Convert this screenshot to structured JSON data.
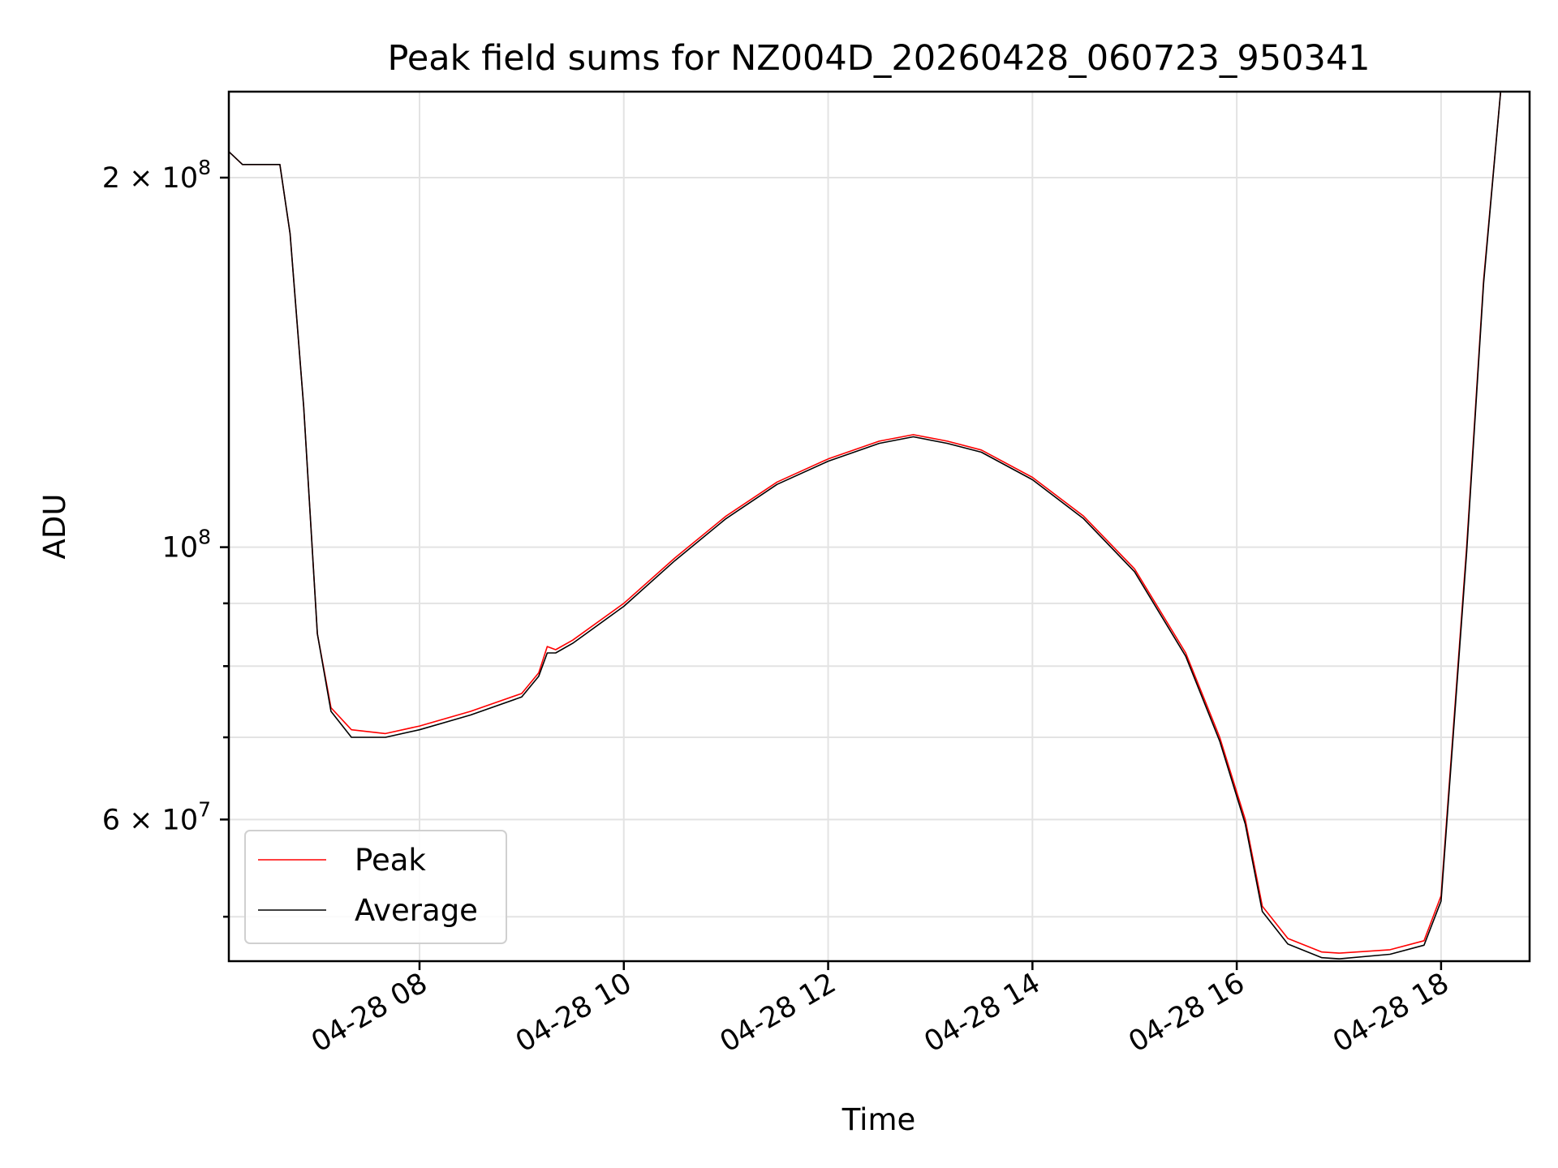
{
  "chart_data": {
    "type": "line",
    "title": "Peak field sums for NZ004D_20260428_060723_950341",
    "xlabel": "Time",
    "ylabel": "ADU",
    "y_scale": "log",
    "x_axis_type": "time",
    "xlim": [
      "2026-04-28 06:08",
      "2026-04-28 18:52"
    ],
    "ylim": [
      46000000,
      235000000
    ],
    "grid": true,
    "legend_position": "lower-left",
    "x_ticks": [
      {
        "t": "2026-04-28 08:00",
        "label": "04-28 08"
      },
      {
        "t": "2026-04-28 10:00",
        "label": "04-28 10"
      },
      {
        "t": "2026-04-28 12:00",
        "label": "04-28 12"
      },
      {
        "t": "2026-04-28 14:00",
        "label": "04-28 14"
      },
      {
        "t": "2026-04-28 16:00",
        "label": "04-28 16"
      },
      {
        "t": "2026-04-28 18:00",
        "label": "04-28 18"
      }
    ],
    "y_major_ticks": [
      {
        "value": 60000000,
        "mantissa": "6 × 10",
        "exp": "7"
      },
      {
        "value": 100000000,
        "mantissa": "10",
        "exp": "8"
      },
      {
        "value": 200000000,
        "mantissa": "2 × 10",
        "exp": "8"
      }
    ],
    "y_minor_ticks": [
      50000000,
      70000000,
      80000000,
      90000000
    ],
    "series": [
      {
        "name": "Peak",
        "color": "#ff0000",
        "points": [
          [
            "2026-04-28 06:08",
            210000000
          ],
          [
            "2026-04-28 06:16",
            205000000
          ],
          [
            "2026-04-28 06:30",
            205000000
          ],
          [
            "2026-04-28 06:38",
            205000000
          ],
          [
            "2026-04-28 06:44",
            180000000
          ],
          [
            "2026-04-28 06:52",
            130000000
          ],
          [
            "2026-04-28 07:00",
            85000000
          ],
          [
            "2026-04-28 07:08",
            74000000
          ],
          [
            "2026-04-28 07:20",
            71000000
          ],
          [
            "2026-04-28 07:40",
            70500000
          ],
          [
            "2026-04-28 08:00",
            71500000
          ],
          [
            "2026-04-28 08:30",
            73500000
          ],
          [
            "2026-04-28 09:00",
            76000000
          ],
          [
            "2026-04-28 09:10",
            79000000
          ],
          [
            "2026-04-28 09:15",
            83000000
          ],
          [
            "2026-04-28 09:20",
            82500000
          ],
          [
            "2026-04-28 09:30",
            84000000
          ],
          [
            "2026-04-28 10:00",
            90000000
          ],
          [
            "2026-04-28 10:30",
            98000000
          ],
          [
            "2026-04-28 11:00",
            106000000
          ],
          [
            "2026-04-28 11:30",
            113000000
          ],
          [
            "2026-04-28 12:00",
            118000000
          ],
          [
            "2026-04-28 12:30",
            122000000
          ],
          [
            "2026-04-28 12:50",
            123500000
          ],
          [
            "2026-04-28 13:10",
            122000000
          ],
          [
            "2026-04-28 13:30",
            120000000
          ],
          [
            "2026-04-28 14:00",
            114000000
          ],
          [
            "2026-04-28 14:30",
            106000000
          ],
          [
            "2026-04-28 15:00",
            96000000
          ],
          [
            "2026-04-28 15:30",
            82000000
          ],
          [
            "2026-04-28 15:50",
            70000000
          ],
          [
            "2026-04-28 16:05",
            60000000
          ],
          [
            "2026-04-28 16:15",
            51000000
          ],
          [
            "2026-04-28 16:30",
            48000000
          ],
          [
            "2026-04-28 16:50",
            46800000
          ],
          [
            "2026-04-28 17:00",
            46700000
          ],
          [
            "2026-04-28 17:30",
            47000000
          ],
          [
            "2026-04-28 17:50",
            47800000
          ],
          [
            "2026-04-28 18:00",
            52000000
          ],
          [
            "2026-04-28 18:15",
            100000000
          ],
          [
            "2026-04-28 18:25",
            165000000
          ],
          [
            "2026-04-28 18:35",
            235000000
          ]
        ]
      },
      {
        "name": "Average",
        "color": "#000000",
        "points": [
          [
            "2026-04-28 06:08",
            210000000
          ],
          [
            "2026-04-28 06:16",
            205000000
          ],
          [
            "2026-04-28 06:30",
            205000000
          ],
          [
            "2026-04-28 06:38",
            205000000
          ],
          [
            "2026-04-28 06:44",
            180000000
          ],
          [
            "2026-04-28 06:52",
            130000000
          ],
          [
            "2026-04-28 07:00",
            85000000
          ],
          [
            "2026-04-28 07:08",
            73500000
          ],
          [
            "2026-04-28 07:20",
            70000000
          ],
          [
            "2026-04-28 07:40",
            70000000
          ],
          [
            "2026-04-28 08:00",
            71000000
          ],
          [
            "2026-04-28 08:30",
            73000000
          ],
          [
            "2026-04-28 09:00",
            75500000
          ],
          [
            "2026-04-28 09:10",
            78500000
          ],
          [
            "2026-04-28 09:15",
            82000000
          ],
          [
            "2026-04-28 09:20",
            82000000
          ],
          [
            "2026-04-28 09:30",
            83500000
          ],
          [
            "2026-04-28 10:00",
            89500000
          ],
          [
            "2026-04-28 10:30",
            97500000
          ],
          [
            "2026-04-28 11:00",
            105500000
          ],
          [
            "2026-04-28 11:30",
            112500000
          ],
          [
            "2026-04-28 12:00",
            117500000
          ],
          [
            "2026-04-28 12:30",
            121500000
          ],
          [
            "2026-04-28 12:50",
            123000000
          ],
          [
            "2026-04-28 13:10",
            121500000
          ],
          [
            "2026-04-28 13:30",
            119500000
          ],
          [
            "2026-04-28 14:00",
            113500000
          ],
          [
            "2026-04-28 14:30",
            105500000
          ],
          [
            "2026-04-28 15:00",
            95500000
          ],
          [
            "2026-04-28 15:30",
            81500000
          ],
          [
            "2026-04-28 15:50",
            69500000
          ],
          [
            "2026-04-28 16:05",
            59500000
          ],
          [
            "2026-04-28 16:15",
            50500000
          ],
          [
            "2026-04-28 16:30",
            47500000
          ],
          [
            "2026-04-28 16:50",
            46300000
          ],
          [
            "2026-04-28 17:00",
            46200000
          ],
          [
            "2026-04-28 17:30",
            46600000
          ],
          [
            "2026-04-28 17:50",
            47400000
          ],
          [
            "2026-04-28 18:00",
            51500000
          ],
          [
            "2026-04-28 18:15",
            99000000
          ],
          [
            "2026-04-28 18:25",
            164000000
          ],
          [
            "2026-04-28 18:35",
            235000000
          ]
        ]
      }
    ]
  }
}
